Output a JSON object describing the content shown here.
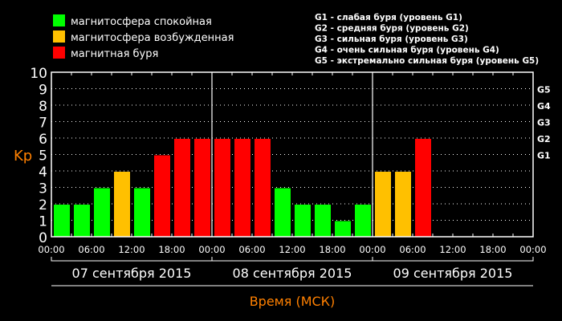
{
  "legend": [
    {
      "label": "магнитосфера спокойная",
      "color": "#00ff00"
    },
    {
      "label": "магнитосфера возбужденная",
      "color": "#ffc000"
    },
    {
      "label": "магнитная буря",
      "color": "#ff0000"
    }
  ],
  "g_legend": [
    "G1 - слабая буря (уровень G1)",
    "G2 - средняя буря (уровень G2)",
    "G3 - сильная буря (уровень G3)",
    "G4 - очень сильная буря (уровень G4)",
    "G5 - экстремально сильная буря (уровень G5)"
  ],
  "chart_data": {
    "type": "bar",
    "ylabel": "Kp",
    "xlabel": "Время (МСК)",
    "ylim": [
      0,
      10
    ],
    "yticks": [
      "0",
      "1",
      "2",
      "3",
      "4",
      "5",
      "6",
      "7",
      "8",
      "9",
      "10"
    ],
    "g_levels": [
      {
        "label": "G1",
        "kp": 5
      },
      {
        "label": "G2",
        "kp": 6
      },
      {
        "label": "G3",
        "kp": 7
      },
      {
        "label": "G4",
        "kp": 8
      },
      {
        "label": "G5",
        "kp": 9
      }
    ],
    "grid": "dotted-horizontal",
    "days": [
      "07 сентября 2015",
      "08 сентября 2015",
      "09 сентября 2015"
    ],
    "xtick_labels": [
      "00:00",
      "06:00",
      "12:00",
      "18:00",
      "00:00",
      "06:00",
      "12:00",
      "18:00",
      "00:00",
      "06:00",
      "12:00",
      "18:00",
      "00:00"
    ],
    "values": [
      2,
      2,
      3,
      4,
      3,
      5,
      6,
      6,
      6,
      6,
      6,
      3,
      2,
      2,
      1,
      2,
      4,
      4,
      6,
      null,
      null,
      null,
      null,
      null
    ],
    "colors": {
      "quiet": "#00ff00",
      "active": "#ffc000",
      "storm": "#ff0000"
    },
    "accent": "#ff8000"
  }
}
